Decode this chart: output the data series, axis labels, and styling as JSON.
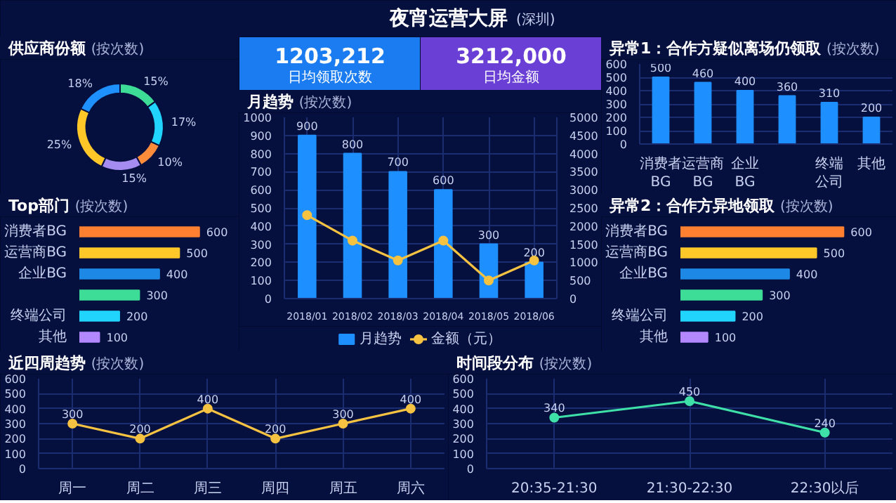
{
  "chart_data": [
    {
      "type": "other",
      "title": "夜宵运营大屏",
      "subtitle": "(深圳)"
    },
    {
      "type": "donut",
      "title": "供应商份额",
      "subtitle": "(按次数)",
      "categories": [
        null,
        null,
        null,
        null,
        null,
        null
      ],
      "values": [
        15,
        17,
        10,
        15,
        25,
        18
      ],
      "colors": [
        "#3ddc97",
        "#21d4fd",
        "#ff8c3a",
        "#a58cf0",
        "#ffc828",
        "#1e90ff"
      ],
      "value_labels": [
        "15%",
        "17%",
        "10%",
        "15%",
        "25%",
        "18%"
      ]
    },
    {
      "type": "other",
      "color": "#1a7cf0",
      "annotations": [
        "1203,212",
        "日均领取次数"
      ]
    },
    {
      "type": "other",
      "color": "#6a3fd6",
      "annotations": [
        "3212,000",
        "日均金额"
      ]
    },
    {
      "type": "bar",
      "title": "异常1：合作方疑似离场仍领取",
      "subtitle": "(按次数)",
      "categories": [
        "消费者BG",
        "运营商BG",
        "企业BG",
        null,
        "终端公司",
        "其他"
      ],
      "values": [
        500,
        460,
        400,
        360,
        310,
        200
      ],
      "color": "#1e8fff",
      "ylim": [
        0,
        600
      ],
      "yticks": [
        0,
        100,
        200,
        300,
        400,
        500,
        600
      ],
      "data_labels": true,
      "grid": "y"
    },
    {
      "type": "bar",
      "title": "月趋势",
      "subtitle": "(按次数)",
      "categories": [
        "2018/01",
        "2018/02",
        "2018/03",
        "2018/04",
        "2018/05",
        "2018/06"
      ],
      "series": [
        {
          "name": "月趋势",
          "type": "bar",
          "color": "#1e8fff",
          "values": [
            900,
            800,
            700,
            600,
            300,
            200
          ],
          "value_labels": [
            "900",
            "800",
            "700",
            "600",
            "300",
            "200"
          ]
        },
        {
          "name": "金额（元）",
          "type": "line",
          "axis": "y2",
          "color": "#f5c242",
          "values": [
            2300,
            1600,
            1050,
            1600,
            500,
            1050
          ]
        }
      ],
      "ylim": [
        0,
        1000
      ],
      "yticks": [
        0,
        100,
        200,
        300,
        400,
        500,
        600,
        700,
        800,
        900,
        1000
      ],
      "y2lim": [
        0,
        5000
      ],
      "y2ticks": [
        0,
        500,
        1000,
        1500,
        2000,
        2500,
        3000,
        3500,
        4000,
        4500,
        5000
      ],
      "grid": true,
      "legend": "bottom",
      "marker": "circle"
    },
    {
      "type": "bar",
      "title": "Top部门",
      "subtitle": "(按次数)",
      "orientation": "horizontal",
      "categories": [
        "消费者BG",
        "运营商BG",
        "企业BG",
        null,
        "终端公司",
        "其他"
      ],
      "values": [
        600,
        500,
        400,
        300,
        200,
        100
      ],
      "colors": [
        "#ff8030",
        "#ffc828",
        "#1e88e5",
        "#3ddc97",
        "#21d4fd",
        "#b388ff"
      ],
      "data_labels": true,
      "tick_labels": "y"
    },
    {
      "type": "bar",
      "title": "异常2：合作方异地领取",
      "subtitle": "(按次数)",
      "orientation": "horizontal",
      "categories": [
        "消费者BG",
        "运营商BG",
        "企业BG",
        null,
        "终端公司",
        "其他"
      ],
      "values": [
        600,
        500,
        400,
        300,
        200,
        100
      ],
      "colors": [
        "#ff8030",
        "#ffc828",
        "#1e88e5",
        "#3ddc97",
        "#21d4fd",
        "#b388ff"
      ],
      "data_labels": true,
      "tick_labels": "y"
    },
    {
      "type": "line",
      "title": "近四周趋势",
      "subtitle": "(按次数)",
      "categories": [
        "周一",
        "周二",
        "周三",
        "周四",
        "周五",
        "周六"
      ],
      "values": [
        300,
        200,
        400,
        200,
        300,
        400
      ],
      "color": "#f5c242",
      "ylim": [
        0,
        600
      ],
      "yticks": [
        0,
        100,
        200,
        300,
        400,
        500,
        600
      ],
      "grid": true,
      "marker": "circle",
      "data_labels": true
    },
    {
      "type": "line",
      "title": "时间段分布",
      "subtitle": "(按次数)",
      "categories": [
        "20:35-21:30",
        "21:30-22:30",
        "22:30以后"
      ],
      "values": [
        340,
        450,
        240
      ],
      "color": "#3ee0a8",
      "ylim": [
        0,
        600
      ],
      "yticks": [
        0,
        100,
        200,
        300,
        400,
        500,
        600
      ],
      "grid": true,
      "marker": "circle",
      "data_labels": true
    }
  ]
}
